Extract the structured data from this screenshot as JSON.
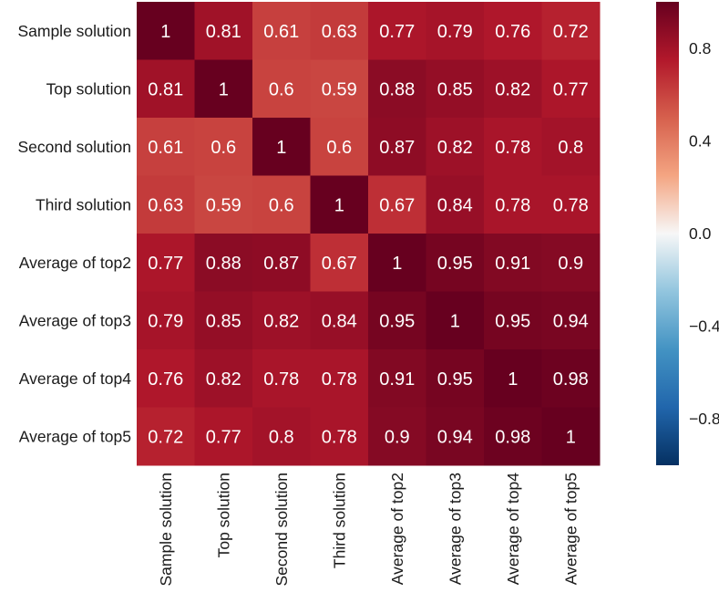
{
  "chart_data": {
    "type": "heatmap",
    "title": "",
    "xlabel": "",
    "ylabel": "",
    "row_labels": [
      "Sample solution",
      "Top solution",
      "Second solution",
      "Third solution",
      "Average of top2",
      "Average of top3",
      "Average of top4",
      "Average of top5"
    ],
    "col_labels": [
      "Sample solution",
      "Top solution",
      "Second solution",
      "Third solution",
      "Average of top2",
      "Average of top3",
      "Average of top4",
      "Average of top5"
    ],
    "values": [
      [
        1,
        0.81,
        0.61,
        0.63,
        0.77,
        0.79,
        0.76,
        0.72
      ],
      [
        0.81,
        1,
        0.6,
        0.59,
        0.88,
        0.85,
        0.82,
        0.77
      ],
      [
        0.61,
        0.6,
        1,
        0.6,
        0.87,
        0.82,
        0.78,
        0.8
      ],
      [
        0.63,
        0.59,
        0.6,
        1,
        0.67,
        0.84,
        0.78,
        0.78
      ],
      [
        0.77,
        0.88,
        0.87,
        0.67,
        1,
        0.95,
        0.91,
        0.9
      ],
      [
        0.79,
        0.85,
        0.82,
        0.84,
        0.95,
        1,
        0.95,
        0.94
      ],
      [
        0.76,
        0.82,
        0.78,
        0.78,
        0.91,
        0.95,
        1,
        0.98
      ],
      [
        0.72,
        0.77,
        0.8,
        0.78,
        0.9,
        0.94,
        0.98,
        1
      ]
    ],
    "colorbar": {
      "colormap": "RdBu_r",
      "range": [
        -1,
        1
      ],
      "ticks": [
        0.8,
        0.4,
        0.0,
        -0.4,
        -0.8
      ],
      "tick_labels": [
        "0.8",
        "0.4",
        "0.0",
        "−0.4",
        "−0.8"
      ]
    },
    "grid": false,
    "legend": "colorbar-right"
  }
}
